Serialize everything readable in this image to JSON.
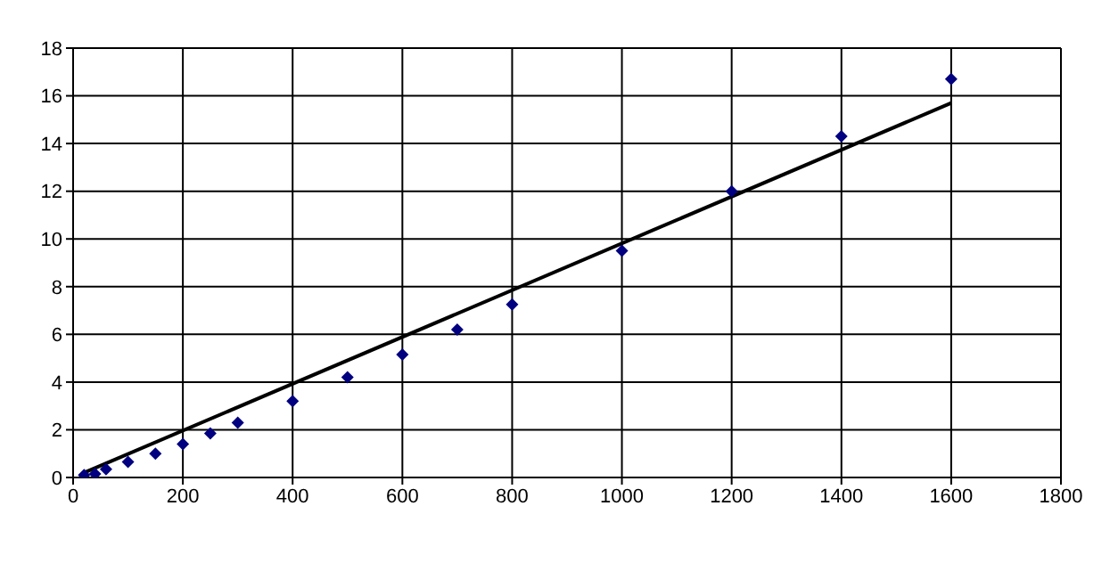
{
  "chart_data": {
    "type": "scatter",
    "xlim": [
      0,
      1800
    ],
    "xticks": [
      0,
      200,
      400,
      600,
      800,
      1000,
      1200,
      1400,
      1600,
      1800
    ],
    "ylim": [
      0,
      18
    ],
    "yticks": [
      0,
      2,
      4,
      6,
      8,
      10,
      12,
      14,
      16,
      18
    ],
    "grid": true,
    "series": [
      {
        "color": "#000080",
        "marker": "diamond",
        "x": [
          20,
          40,
          60,
          100,
          150,
          200,
          250,
          300,
          400,
          500,
          600,
          700,
          800,
          1000,
          1200,
          1400,
          1600
        ],
        "values": [
          0.1,
          0.15,
          0.35,
          0.65,
          1.0,
          1.4,
          1.85,
          2.3,
          3.2,
          4.2,
          5.15,
          6.2,
          7.25,
          9.5,
          12.0,
          14.3,
          16.7
        ]
      },
      {
        "type": "line",
        "color": "#000000",
        "marker": "none",
        "line_style": "solid",
        "x": [
          20,
          1600
        ],
        "values": [
          0.2,
          15.7
        ]
      }
    ]
  }
}
